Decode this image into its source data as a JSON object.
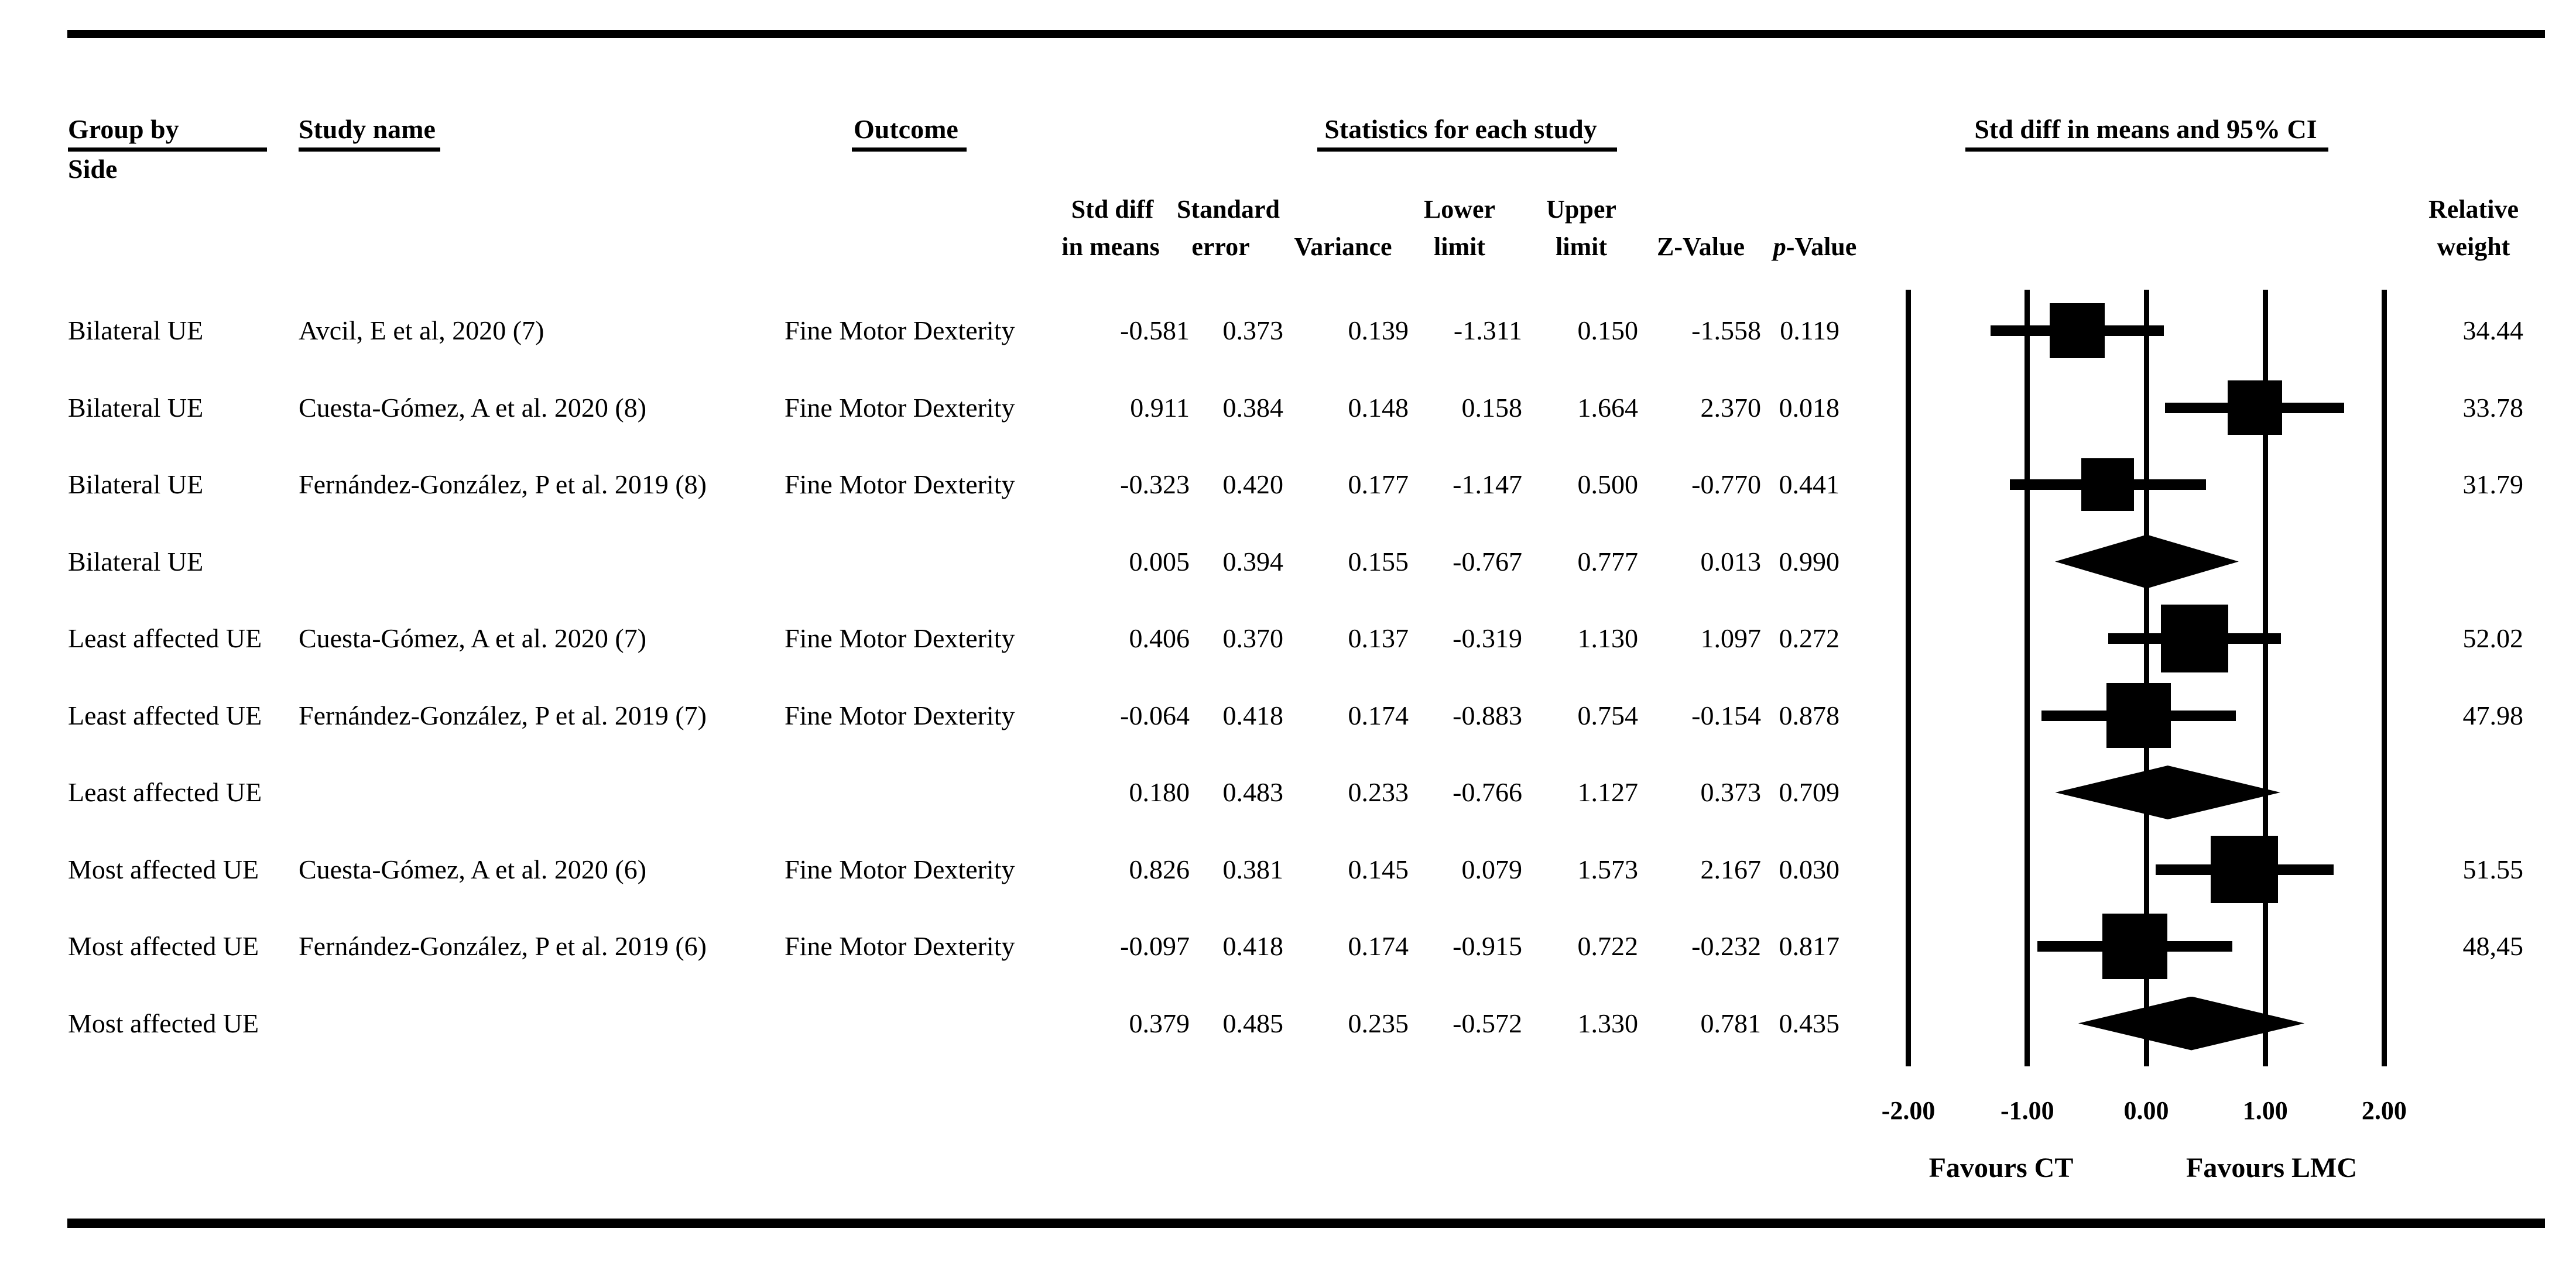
{
  "header": {
    "group_by": "Group by",
    "group_by_sub": "Side",
    "study_name": "Study name",
    "outcome": "Outcome",
    "statistics_title": "Statistics for each study",
    "ci_title": "Std diff in means and 95% CI",
    "col_std_diff_l1": "Std diff",
    "col_std_diff_l2": "in means",
    "col_standard_l1": "Standard",
    "col_standard_l2": "error",
    "col_variance": "Variance",
    "col_lower_l1": "Lower",
    "col_lower_l2": "limit",
    "col_upper_l1": "Upper",
    "col_upper_l2": "limit",
    "col_z": "Z-Value",
    "col_p_italic": "p",
    "col_p_rest": "-Value",
    "col_relative": "Relative",
    "col_weight": "weight"
  },
  "rows": [
    {
      "kind": "study",
      "group": "Bilateral UE",
      "study": "Avcil, E et al, 2020 (7)",
      "outcome": "Fine Motor Dexterity",
      "stats": [
        "-0.581",
        "0.373",
        "0.139",
        "-1.311",
        "0.150",
        "-1.558",
        "0.119"
      ],
      "weight": "34.44"
    },
    {
      "kind": "study",
      "group": "Bilateral UE",
      "study": "Cuesta-Gómez, A et al. 2020 (8)",
      "outcome": "Fine Motor Dexterity",
      "stats": [
        "0.911",
        "0.384",
        "0.148",
        "0.158",
        "1.664",
        "2.370",
        "0.018"
      ],
      "weight": "33.78"
    },
    {
      "kind": "study",
      "group": "Bilateral UE",
      "study": "Fernández-González, P et al. 2019 (8)",
      "outcome": "Fine Motor Dexterity",
      "stats": [
        "-0.323",
        "0.420",
        "0.177",
        "-1.147",
        "0.500",
        "-0.770",
        "0.441"
      ],
      "weight": "31.79"
    },
    {
      "kind": "summary",
      "group": "Bilateral UE",
      "study": "",
      "outcome": "",
      "stats": [
        "0.005",
        "0.394",
        "0.155",
        "-0.767",
        "0.777",
        "0.013",
        "0.990"
      ],
      "weight": ""
    },
    {
      "kind": "study",
      "group": "Least affected UE",
      "study": "Cuesta-Gómez, A et al. 2020 (7)",
      "outcome": "Fine Motor Dexterity",
      "stats": [
        "0.406",
        "0.370",
        "0.137",
        "-0.319",
        "1.130",
        "1.097",
        "0.272"
      ],
      "weight": "52.02"
    },
    {
      "kind": "study",
      "group": "Least affected UE",
      "study": "Fernández-González, P et al. 2019 (7)",
      "outcome": "Fine Motor Dexterity",
      "stats": [
        "-0.064",
        "0.418",
        "0.174",
        "-0.883",
        "0.754",
        "-0.154",
        "0.878"
      ],
      "weight": "47.98"
    },
    {
      "kind": "summary",
      "group": "Least affected UE",
      "study": "",
      "outcome": "",
      "stats": [
        "0.180",
        "0.483",
        "0.233",
        "-0.766",
        "1.127",
        "0.373",
        "0.709"
      ],
      "weight": ""
    },
    {
      "kind": "study",
      "group": "Most affected UE",
      "study": "Cuesta-Gómez, A et al. 2020 (6)",
      "outcome": "Fine Motor Dexterity",
      "stats": [
        "0.826",
        "0.381",
        "0.145",
        "0.079",
        "1.573",
        "2.167",
        "0.030"
      ],
      "weight": "51.55"
    },
    {
      "kind": "study",
      "group": "Most affected UE",
      "study": "Fernández-González, P et al. 2019 (6)",
      "outcome": "Fine Motor Dexterity",
      "stats": [
        "-0.097",
        "0.418",
        "0.174",
        "-0.915",
        "0.722",
        "-0.232",
        "0.817"
      ],
      "weight": "48,45"
    },
    {
      "kind": "summary",
      "group": "Most affected UE",
      "study": "",
      "outcome": "",
      "stats": [
        "0.379",
        "0.485",
        "0.235",
        "-0.572",
        "1.330",
        "0.781",
        "0.435"
      ],
      "weight": ""
    }
  ],
  "chart_data": {
    "type": "forest",
    "title": "Std diff in means and 95% CI",
    "xlim": [
      -2,
      2
    ],
    "x_ticks": [
      -2,
      -1,
      0,
      1,
      2
    ],
    "x_tick_labels": [
      "-2.00",
      "-1.00",
      "0.00",
      "1.00",
      "2.00"
    ],
    "favours": {
      "left": "Favours CT",
      "right": "Favours LMC"
    },
    "series": [
      {
        "kind": "study",
        "label": "Bilateral UE / Avcil, E et al, 2020 (7)",
        "effect": -0.581,
        "lower": -1.311,
        "upper": 0.15,
        "weight": 34.44
      },
      {
        "kind": "study",
        "label": "Bilateral UE / Cuesta-Gómez, A et al. 2020 (8)",
        "effect": 0.911,
        "lower": 0.158,
        "upper": 1.664,
        "weight": 33.78
      },
      {
        "kind": "study",
        "label": "Bilateral UE / Fernández-González, P et al. 2019 (8)",
        "effect": -0.323,
        "lower": -1.147,
        "upper": 0.5,
        "weight": 31.79
      },
      {
        "kind": "summary",
        "label": "Bilateral UE (pooled)",
        "effect": 0.005,
        "lower": -0.767,
        "upper": 0.777,
        "weight": null
      },
      {
        "kind": "study",
        "label": "Least affected UE / Cuesta-Gómez, A et al. 2020 (7)",
        "effect": 0.406,
        "lower": -0.319,
        "upper": 1.13,
        "weight": 52.02
      },
      {
        "kind": "study",
        "label": "Least affected UE / Fernández-González, P et al. 2019 (7)",
        "effect": -0.064,
        "lower": -0.883,
        "upper": 0.754,
        "weight": 47.98
      },
      {
        "kind": "summary",
        "label": "Least affected UE (pooled)",
        "effect": 0.18,
        "lower": -0.766,
        "upper": 1.127,
        "weight": null
      },
      {
        "kind": "study",
        "label": "Most affected UE / Cuesta-Gómez, A et al. 2020 (6)",
        "effect": 0.826,
        "lower": 0.079,
        "upper": 1.573,
        "weight": 51.55
      },
      {
        "kind": "study",
        "label": "Most affected UE / Fernández-González, P et al. 2019 (6)",
        "effect": -0.097,
        "lower": -0.915,
        "upper": 0.722,
        "weight": 48.45
      },
      {
        "kind": "summary",
        "label": "Most affected UE (pooled)",
        "effect": 0.379,
        "lower": -0.572,
        "upper": 1.33,
        "weight": null
      }
    ]
  }
}
